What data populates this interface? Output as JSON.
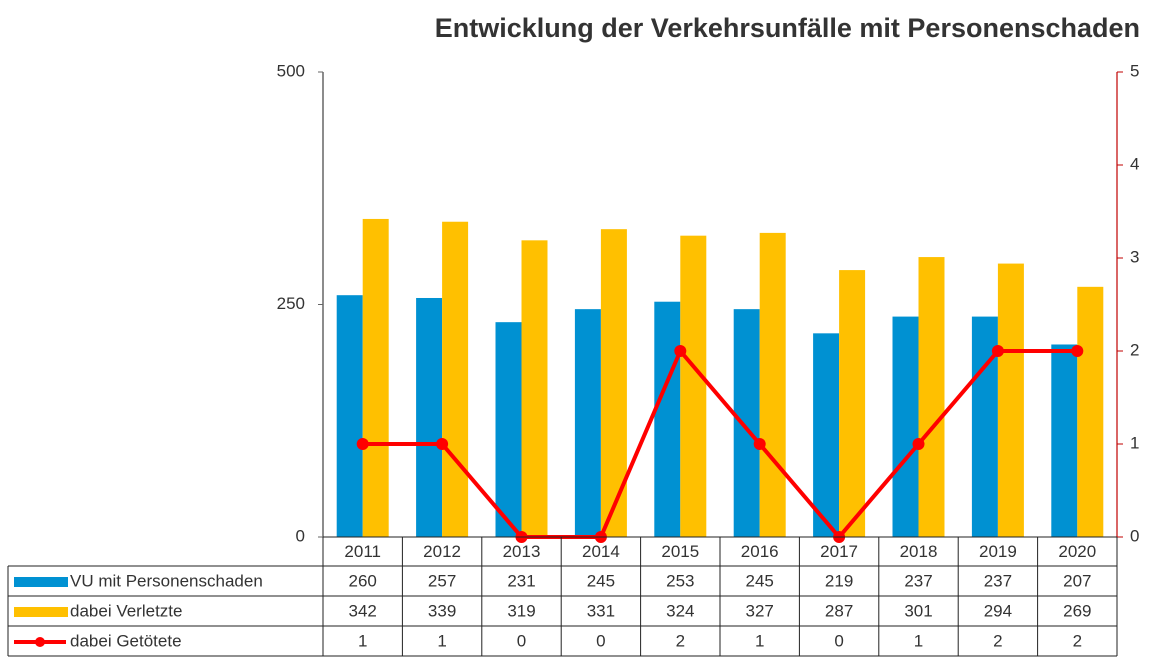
{
  "chart_data": {
    "type": "bar",
    "title": "Entwicklung der Verkehrsunfälle mit Personenschaden",
    "categories": [
      "2011",
      "2012",
      "2013",
      "2014",
      "2015",
      "2016",
      "2017",
      "2018",
      "2019",
      "2020"
    ],
    "series": [
      {
        "name": "VU mit Personenschaden",
        "color": "#0091d2",
        "values": [
          260,
          257,
          231,
          245,
          253,
          245,
          219,
          237,
          237,
          207
        ]
      },
      {
        "name": "dabei Verletzte",
        "color": "#ffc000",
        "values": [
          342,
          339,
          319,
          331,
          324,
          327,
          287,
          301,
          294,
          269
        ]
      },
      {
        "name": "dabei Getötete",
        "color": "#ff0000",
        "type": "line",
        "axis": "y2",
        "values": [
          1,
          1,
          0,
          0,
          2,
          1,
          0,
          1,
          2,
          2
        ]
      }
    ],
    "ylim": [
      0,
      500
    ],
    "yticks": [
      0,
      250,
      500
    ],
    "y2lim": [
      0,
      5
    ],
    "y2ticks": [
      0,
      1,
      2,
      3,
      4,
      5
    ],
    "y2_axis_color": "#c00000"
  }
}
